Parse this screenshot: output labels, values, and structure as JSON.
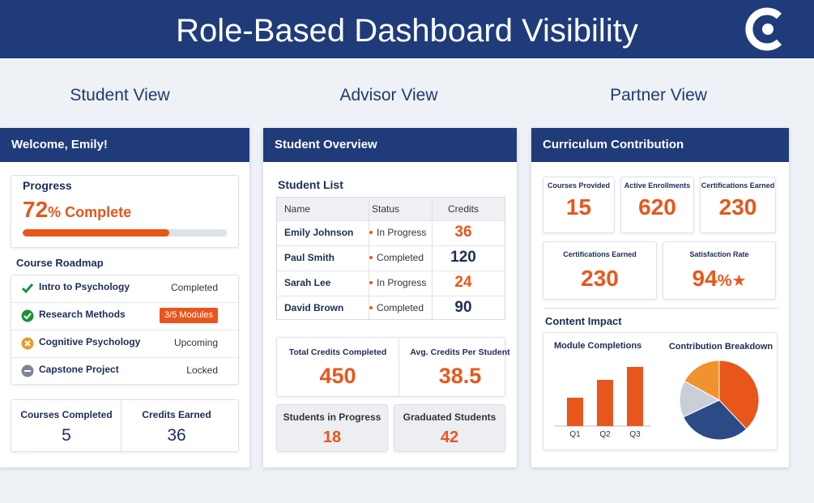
{
  "header": {
    "title": "Role-Based Dashboard Visibility"
  },
  "student": {
    "heading": "Student View",
    "panel_title": "Welcome, Emily!",
    "progress": {
      "label": "Progress",
      "value": 72,
      "suffix": "% Complete"
    },
    "roadmap": {
      "title": "Course Roadmap",
      "items": [
        {
          "name": "Intro to Psychology",
          "status": "Completed"
        },
        {
          "name": "Research Methods",
          "status": "3/5 Modules"
        },
        {
          "name": "Cognitive Psychology",
          "status": "Upcoming"
        },
        {
          "name": "Capstone Project",
          "status": "Locked"
        }
      ]
    },
    "stats": [
      {
        "label": "Courses Completed",
        "value": 5
      },
      {
        "label": "Credits Earned",
        "value": 36
      }
    ]
  },
  "advisor": {
    "heading": "Advisor View",
    "panel_title": "Student Overview",
    "list_title": "Student List",
    "columns": [
      "Name",
      "Status",
      "Credits"
    ],
    "rows": [
      [
        "Emily Johnson",
        "In Progress",
        36
      ],
      [
        "Paul Smith",
        "Completed",
        120
      ],
      [
        "Sarah Lee",
        "In Progress",
        24
      ],
      [
        "David Brown",
        "Completed",
        90
      ]
    ],
    "stats": [
      {
        "label": "Total Credits Completed",
        "value": 450
      },
      {
        "label": "Avg. Credits Per Student",
        "value": 38.5
      },
      {
        "label": "Students in Progress",
        "value": 18
      },
      {
        "label": "Graduated Students",
        "value": 42
      }
    ]
  },
  "partner": {
    "heading": "Partner View",
    "panel_title": "Curriculum Contribution",
    "stats": [
      {
        "label": "Courses Provided",
        "value": 15
      },
      {
        "label": "Active Enrollments",
        "value": 620
      },
      {
        "label": "Certifications Earned",
        "value": 230
      },
      {
        "label": "Certifications Earned",
        "value": 230
      },
      {
        "label": "Satisfaction Rate",
        "value": 94,
        "suffix": "%"
      }
    ],
    "impact_title": "Content Impact",
    "bar_chart": {
      "type": "bar",
      "title": "Module Completions",
      "categories": [
        "Q1",
        "Q2",
        "Q3"
      ],
      "values": [
        35,
        57,
        73
      ],
      "color": "#e8561c"
    },
    "pie_chart": {
      "type": "pie",
      "title": "Contribution Breakdown",
      "values": [
        38,
        30,
        15,
        17
      ],
      "colors": [
        "#e8561c",
        "#2c4a86",
        "#c9ced8",
        "#f0922e"
      ]
    }
  }
}
